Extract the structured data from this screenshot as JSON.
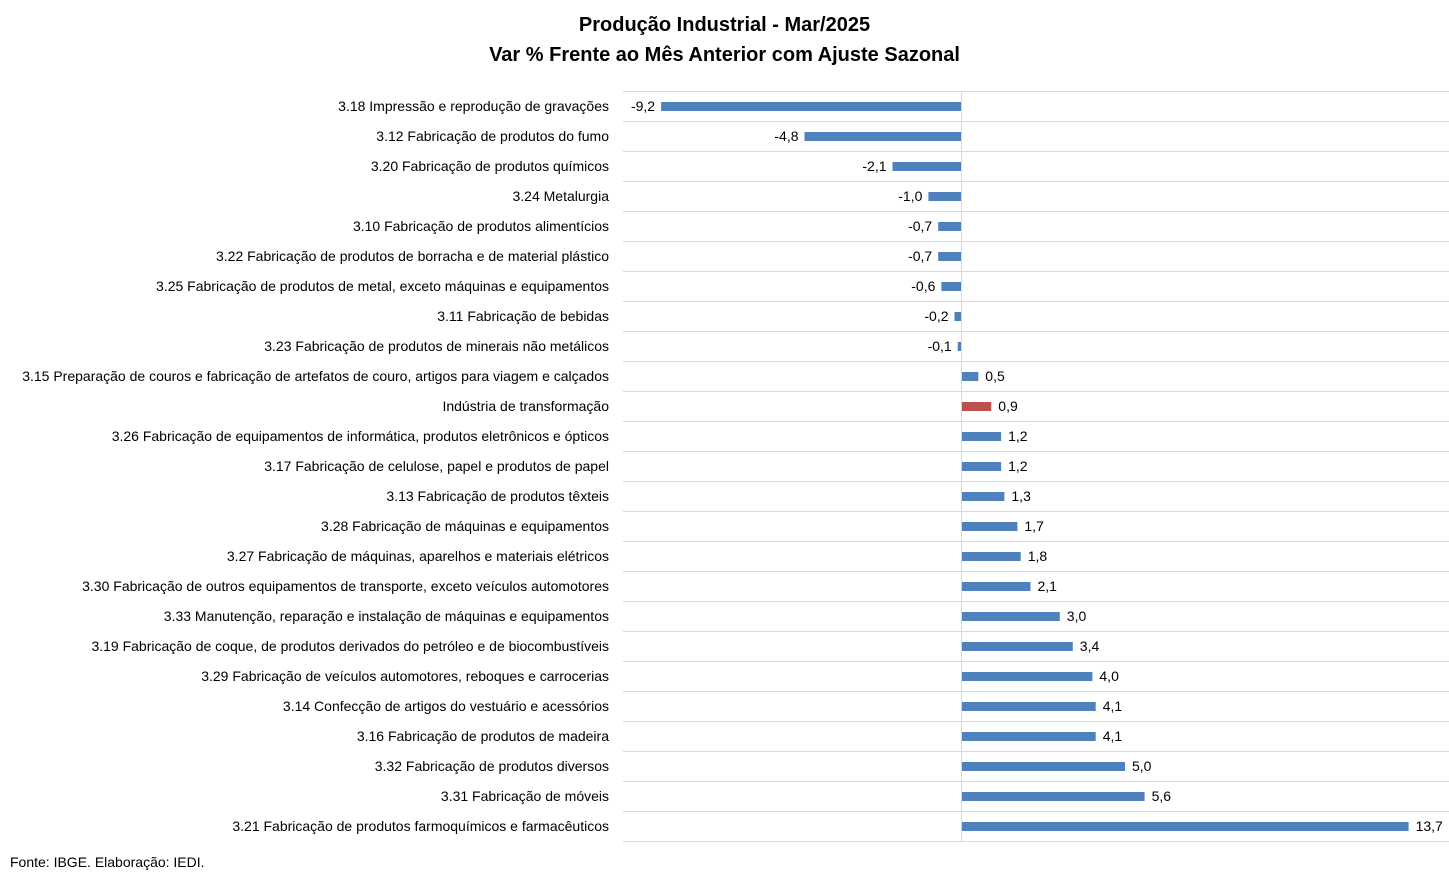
{
  "chart_data": {
    "type": "bar",
    "orientation": "horizontal",
    "title": "Produção Industrial - Mar/2025",
    "subtitle": "Var % Frente ao Mês Anterior com Ajuste Sazonal",
    "source": "Fonte: IBGE. Elaboração: IEDI.",
    "xlim": [
      -10,
      14
    ],
    "grid": true,
    "colors": {
      "default": "#4F81BD",
      "highlight": "#C0504D",
      "grid": "#D9D9D9"
    },
    "highlight_category": "Indústria de transformação",
    "categories": [
      "3.18 Impressão e reprodução de gravações",
      "3.12 Fabricação de produtos do fumo",
      "3.20 Fabricação de produtos químicos",
      "3.24 Metalurgia",
      "3.10 Fabricação de produtos alimentícios",
      "3.22 Fabricação de produtos de borracha e de material plástico",
      "3.25 Fabricação de produtos de metal, exceto máquinas e equipamentos",
      "3.11 Fabricação de bebidas",
      "3.23 Fabricação de produtos de minerais não metálicos",
      "3.15 Preparação de couros e fabricação de artefatos de couro, artigos para viagem e calçados",
      "Indústria de transformação",
      "3.26 Fabricação de equipamentos de informática, produtos eletrônicos e ópticos",
      "3.17 Fabricação de celulose, papel e produtos de papel",
      "3.13 Fabricação de produtos têxteis",
      "3.28 Fabricação de máquinas e equipamentos",
      "3.27 Fabricação de máquinas, aparelhos e materiais elétricos",
      "3.30 Fabricação de outros equipamentos de transporte, exceto veículos automotores",
      "3.33 Manutenção, reparação e instalação de máquinas e equipamentos",
      "3.19 Fabricação de coque, de produtos derivados do petróleo e de biocombustíveis",
      "3.29 Fabricação de veículos automotores, reboques e carrocerias",
      "3.14 Confecção de artigos do vestuário e acessórios",
      "3.16 Fabricação de produtos de madeira",
      "3.32 Fabricação de produtos diversos",
      "3.31 Fabricação de móveis",
      "3.21 Fabricação de produtos farmoquímicos e farmacêuticos"
    ],
    "values": [
      -9.2,
      -4.8,
      -2.1,
      -1.0,
      -0.7,
      -0.7,
      -0.6,
      -0.2,
      -0.1,
      0.5,
      0.9,
      1.2,
      1.2,
      1.3,
      1.7,
      1.8,
      2.1,
      3.0,
      3.4,
      4.0,
      4.1,
      4.1,
      5.0,
      5.6,
      13.7
    ],
    "value_labels": [
      "-9,2",
      "-4,8",
      "-2,1",
      "-1,0",
      "-0,7",
      "-0,7",
      "-0,6",
      "-0,2",
      "-0,1",
      "0,5",
      "0,9",
      "1,2",
      "1,2",
      "1,3",
      "1,7",
      "1,8",
      "2,1",
      "3,0",
      "3,4",
      "4,0",
      "4,1",
      "4,1",
      "5,0",
      "5,6",
      "13,7"
    ]
  }
}
